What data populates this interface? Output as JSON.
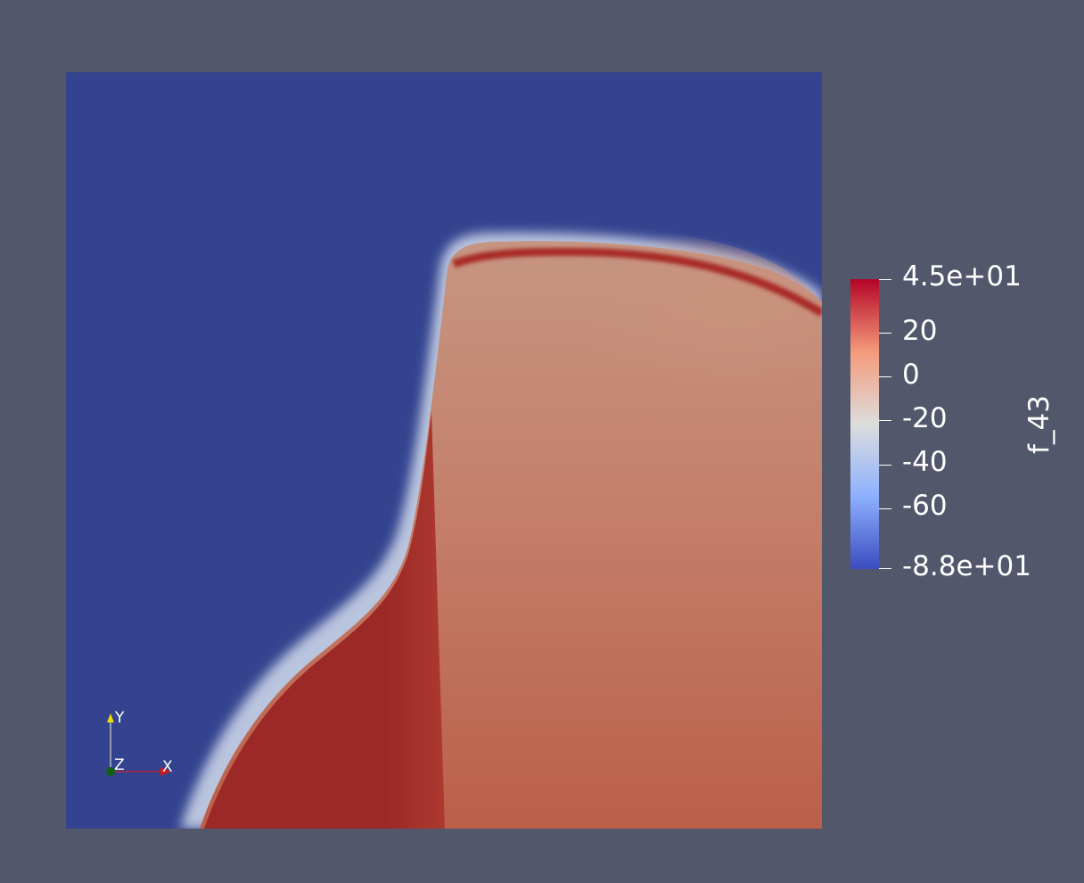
{
  "scalar_bar": {
    "title": "f_43",
    "labels": [
      "4.5e+01",
      "20",
      "0",
      "-20",
      "-40",
      "-60",
      "-8.8e+01"
    ],
    "range": [
      -88,
      45
    ],
    "colors": [
      "#3b4cc0",
      "#8db0fe",
      "#dddddd",
      "#f49a7b",
      "#b40426"
    ]
  },
  "axes": {
    "x": "X",
    "y": "Y",
    "z": "Z"
  },
  "colors": {
    "background": "#52576c",
    "low": "#34438f",
    "high_dark": "#9a2626",
    "mid_warm": "#c28672",
    "body_warm": "#bf6550"
  }
}
